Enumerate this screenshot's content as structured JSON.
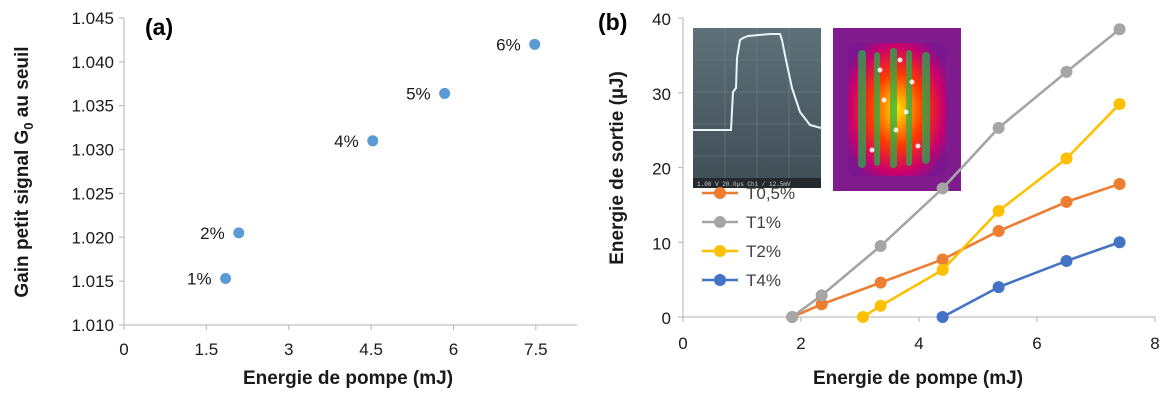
{
  "chart_data": [
    {
      "panel": "(a)",
      "type": "scatter",
      "xlabel": "Energie de pompe (mJ)",
      "ylabel": "Gain petit signal G",
      "ylabel_sub": "0",
      "ylabel_tail": " au seuil",
      "xlim": [
        0,
        8.25
      ],
      "ylim": [
        1.01,
        1.045
      ],
      "xticks": [
        "0",
        "1.5",
        "3",
        "4.5",
        "6",
        "7.5"
      ],
      "xtick_values": [
        0,
        1.5,
        3,
        4.5,
        6,
        7.5
      ],
      "yticks": [
        "1.010",
        "1.015",
        "1.020",
        "1.025",
        "1.030",
        "1.035",
        "1.040",
        "1.045"
      ],
      "ytick_values": [
        1.01,
        1.015,
        1.02,
        1.025,
        1.03,
        1.035,
        1.04,
        1.045
      ],
      "grid": false,
      "color": "#5B9BD5",
      "points": [
        {
          "x": 1.85,
          "y": 1.0153,
          "label": "1%"
        },
        {
          "x": 2.09,
          "y": 1.0205,
          "label": "2%"
        },
        {
          "x": 4.53,
          "y": 1.031,
          "label": "4%"
        },
        {
          "x": 5.84,
          "y": 1.0364,
          "label": "5%"
        },
        {
          "x": 7.48,
          "y": 1.042,
          "label": "6%"
        }
      ]
    },
    {
      "panel": "(b)",
      "type": "line",
      "xlabel": "Energie de pompe (mJ)",
      "ylabel": "Energie de sortie (µJ)",
      "xlim": [
        0,
        8
      ],
      "ylim": [
        0,
        40
      ],
      "xticks": [
        "0",
        "2",
        "4",
        "6",
        "8"
      ],
      "xtick_values": [
        0,
        2,
        4,
        6,
        8
      ],
      "yticks": [
        "0",
        "10",
        "20",
        "30",
        "40"
      ],
      "ytick_values": [
        0,
        10,
        20,
        30,
        40
      ],
      "grid": false,
      "legend_position": "left",
      "series": [
        {
          "name": "T0,5%",
          "color": "#ED7D31",
          "x": [
            1.85,
            2.35,
            3.35,
            4.4,
            5.35,
            6.5,
            7.4
          ],
          "y": [
            0,
            1.7,
            4.6,
            7.7,
            11.5,
            15.4,
            17.8
          ]
        },
        {
          "name": "T1%",
          "color": "#A5A5A5",
          "x": [
            1.85,
            2.35,
            3.35,
            4.4,
            5.35,
            6.5,
            7.4
          ],
          "y": [
            0,
            2.9,
            9.5,
            17.2,
            25.3,
            32.8,
            38.5
          ]
        },
        {
          "name": "T2%",
          "color": "#FFC000",
          "x": [
            3.05,
            3.35,
            4.4,
            5.35,
            6.5,
            7.4
          ],
          "y": [
            0,
            1.5,
            6.3,
            14.2,
            21.2,
            28.5
          ]
        },
        {
          "name": "T4%",
          "color": "#4472C4",
          "x": [
            4.4,
            5.35,
            6.5,
            7.4
          ],
          "y": [
            0,
            4.0,
            7.5,
            10.0
          ]
        }
      ],
      "insets": [
        {
          "kind": "oscilloscope-photo",
          "readout": "1.00 V  20.0µs  Ch1 / 12.5mV"
        },
        {
          "kind": "beam-profile-image"
        }
      ]
    }
  ]
}
